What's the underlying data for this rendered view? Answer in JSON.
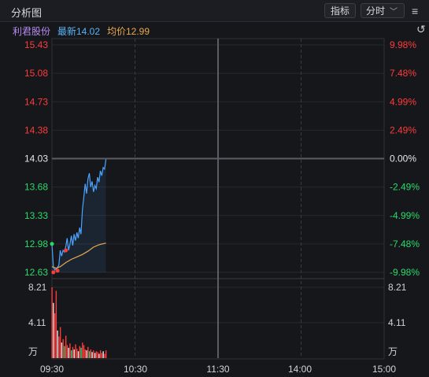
{
  "window": {
    "title": "分析图"
  },
  "toolbar": {
    "indicator_label": "指标",
    "period_label": "分时"
  },
  "stock": {
    "name": "利君股份",
    "latest_label": "最新14.02",
    "avg_label": "均价12.99"
  },
  "colors": {
    "up": "#ff3b3b",
    "down": "#2bd96b",
    "neutral": "#e6e6e6",
    "price_line": "#4aa3ff",
    "avg_line": "#e8a94c",
    "name": "#b58cf0"
  },
  "chart_data": {
    "type": "line",
    "price_axis": {
      "min": 12.63,
      "max": 15.43,
      "ticks": [
        "15.43",
        "15.08",
        "14.73",
        "14.38",
        "14.03",
        "13.68",
        "13.33",
        "12.98",
        "12.63"
      ],
      "pct_ticks": [
        "9.98%",
        "7.48%",
        "4.99%",
        "2.49%",
        "0.00%",
        "-2.49%",
        "-4.99%",
        "-7.48%",
        "-9.98%"
      ]
    },
    "volume_axis": {
      "max": 8.21,
      "ticks": [
        "8.21",
        "4.11",
        "万"
      ]
    },
    "time_ticks": [
      "09:30",
      "10:30",
      "11:30",
      "14:00",
      "15:00"
    ],
    "total_minutes": 240,
    "price": [
      [
        0,
        12.98
      ],
      [
        1,
        12.7
      ],
      [
        2,
        12.66
      ],
      [
        3,
        12.67
      ],
      [
        4,
        12.69
      ],
      [
        5,
        12.72
      ],
      [
        6,
        12.9
      ],
      [
        7,
        12.83
      ],
      [
        8,
        12.9
      ],
      [
        9,
        12.88
      ],
      [
        10,
        12.95
      ],
      [
        11,
        13.05
      ],
      [
        12,
        12.9
      ],
      [
        13,
        12.98
      ],
      [
        14,
        13.08
      ],
      [
        15,
        12.96
      ],
      [
        16,
        13.1
      ],
      [
        17,
        13.02
      ],
      [
        18,
        13.12
      ],
      [
        19,
        13.05
      ],
      [
        20,
        13.18
      ],
      [
        21,
        13.1
      ],
      [
        22,
        13.4
      ],
      [
        23,
        13.55
      ],
      [
        24,
        13.72
      ],
      [
        25,
        13.6
      ],
      [
        26,
        13.78
      ],
      [
        27,
        13.85
      ],
      [
        28,
        13.68
      ],
      [
        29,
        13.75
      ],
      [
        30,
        13.62
      ],
      [
        31,
        13.7
      ],
      [
        32,
        13.66
      ],
      [
        33,
        13.8
      ],
      [
        34,
        13.74
      ],
      [
        35,
        13.88
      ],
      [
        36,
        13.82
      ],
      [
        37,
        13.92
      ],
      [
        38,
        13.9
      ],
      [
        39,
        14.02
      ]
    ],
    "avg": [
      [
        0,
        12.7
      ],
      [
        3,
        12.68
      ],
      [
        6,
        12.7
      ],
      [
        10,
        12.75
      ],
      [
        14,
        12.79
      ],
      [
        18,
        12.82
      ],
      [
        22,
        12.85
      ],
      [
        26,
        12.89
      ],
      [
        30,
        12.94
      ],
      [
        34,
        12.97
      ],
      [
        39,
        12.99
      ]
    ],
    "markers": [
      {
        "t": 0,
        "price": 12.98,
        "color": "down"
      },
      {
        "t": 1,
        "price": 12.63,
        "color": "up"
      },
      {
        "t": 4,
        "price": 12.65,
        "color": "up"
      },
      {
        "t": 10,
        "price": 12.9,
        "color": "up"
      }
    ],
    "volume": [
      [
        0,
        8.21,
        "up"
      ],
      [
        1,
        6.4,
        "neutral"
      ],
      [
        2,
        5.2,
        "up"
      ],
      [
        3,
        7.8,
        "up"
      ],
      [
        4,
        3.2,
        "neutral"
      ],
      [
        5,
        2.5,
        "up"
      ],
      [
        6,
        3.6,
        "up"
      ],
      [
        7,
        1.8,
        "neutral"
      ],
      [
        8,
        2.2,
        "up"
      ],
      [
        9,
        1.4,
        "down"
      ],
      [
        10,
        2.6,
        "up"
      ],
      [
        11,
        1.5,
        "up"
      ],
      [
        12,
        1.2,
        "neutral"
      ],
      [
        13,
        1.7,
        "up"
      ],
      [
        14,
        0.9,
        "down"
      ],
      [
        15,
        1.3,
        "up"
      ],
      [
        16,
        1.0,
        "neutral"
      ],
      [
        17,
        1.6,
        "up"
      ],
      [
        18,
        1.1,
        "up"
      ],
      [
        19,
        0.8,
        "neutral"
      ],
      [
        20,
        1.4,
        "up"
      ],
      [
        21,
        1.2,
        "down"
      ],
      [
        22,
        1.8,
        "up"
      ],
      [
        23,
        1.5,
        "up"
      ],
      [
        24,
        1.0,
        "up"
      ],
      [
        25,
        0.9,
        "neutral"
      ],
      [
        26,
        1.3,
        "up"
      ],
      [
        27,
        0.8,
        "down"
      ],
      [
        28,
        1.0,
        "up"
      ],
      [
        29,
        0.7,
        "neutral"
      ],
      [
        30,
        0.9,
        "up"
      ],
      [
        31,
        0.6,
        "neutral"
      ],
      [
        32,
        0.8,
        "up"
      ],
      [
        33,
        0.7,
        "up"
      ],
      [
        34,
        0.5,
        "neutral"
      ],
      [
        35,
        0.9,
        "up"
      ],
      [
        36,
        0.6,
        "up"
      ],
      [
        37,
        0.8,
        "neutral"
      ],
      [
        38,
        0.5,
        "up"
      ],
      [
        39,
        0.9,
        "up"
      ]
    ]
  }
}
